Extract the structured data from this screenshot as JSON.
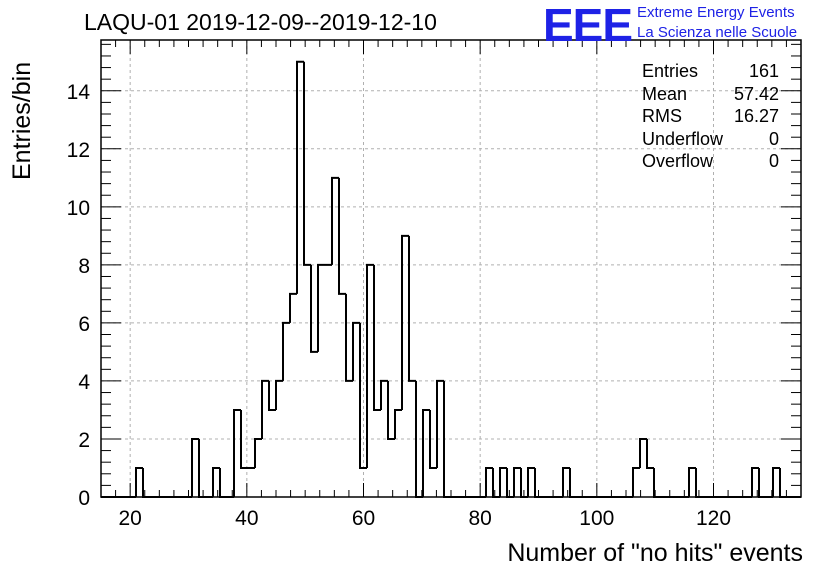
{
  "chart_data": {
    "type": "histogram",
    "title": "LAQU-01 2019-12-09--2019-12-10",
    "xlabel": "Number of \"no hits\" events",
    "ylabel": "Entries/bin",
    "xlim": [
      15,
      135
    ],
    "ylim": [
      0,
      15.75
    ],
    "bin_width": 1.2,
    "x_ticks": [
      20,
      40,
      60,
      80,
      100,
      120
    ],
    "y_ticks": [
      0,
      2,
      4,
      6,
      8,
      10,
      12,
      14
    ],
    "grid": true,
    "bins": [
      {
        "x0": 15.0,
        "v": 0
      },
      {
        "x0": 16.2,
        "v": 0
      },
      {
        "x0": 17.4,
        "v": 0
      },
      {
        "x0": 18.6,
        "v": 0
      },
      {
        "x0": 19.8,
        "v": 0
      },
      {
        "x0": 21.0,
        "v": 1
      },
      {
        "x0": 22.2,
        "v": 0
      },
      {
        "x0": 23.4,
        "v": 0
      },
      {
        "x0": 24.6,
        "v": 0
      },
      {
        "x0": 25.8,
        "v": 0
      },
      {
        "x0": 27.0,
        "v": 0
      },
      {
        "x0": 28.2,
        "v": 0
      },
      {
        "x0": 29.4,
        "v": 0
      },
      {
        "x0": 30.6,
        "v": 2
      },
      {
        "x0": 31.8,
        "v": 0
      },
      {
        "x0": 33.0,
        "v": 0
      },
      {
        "x0": 34.2,
        "v": 1
      },
      {
        "x0": 35.4,
        "v": 0
      },
      {
        "x0": 36.6,
        "v": 0
      },
      {
        "x0": 37.8,
        "v": 3
      },
      {
        "x0": 39.0,
        "v": 1
      },
      {
        "x0": 40.2,
        "v": 1
      },
      {
        "x0": 41.4,
        "v": 2
      },
      {
        "x0": 42.6,
        "v": 4
      },
      {
        "x0": 43.8,
        "v": 3
      },
      {
        "x0": 45.0,
        "v": 4
      },
      {
        "x0": 46.2,
        "v": 6
      },
      {
        "x0": 47.4,
        "v": 7
      },
      {
        "x0": 48.6,
        "v": 15
      },
      {
        "x0": 49.8,
        "v": 8
      },
      {
        "x0": 51.0,
        "v": 5
      },
      {
        "x0": 52.2,
        "v": 8
      },
      {
        "x0": 53.4,
        "v": 8
      },
      {
        "x0": 54.6,
        "v": 11
      },
      {
        "x0": 55.8,
        "v": 7
      },
      {
        "x0": 57.0,
        "v": 4
      },
      {
        "x0": 58.2,
        "v": 6
      },
      {
        "x0": 59.4,
        "v": 1
      },
      {
        "x0": 60.6,
        "v": 8
      },
      {
        "x0": 61.8,
        "v": 3
      },
      {
        "x0": 63.0,
        "v": 4
      },
      {
        "x0": 64.2,
        "v": 2
      },
      {
        "x0": 65.4,
        "v": 3
      },
      {
        "x0": 66.6,
        "v": 9
      },
      {
        "x0": 67.8,
        "v": 4
      },
      {
        "x0": 69.0,
        "v": 0
      },
      {
        "x0": 70.2,
        "v": 3
      },
      {
        "x0": 71.4,
        "v": 1
      },
      {
        "x0": 72.6,
        "v": 4
      },
      {
        "x0": 73.8,
        "v": 0
      },
      {
        "x0": 75.0,
        "v": 0
      },
      {
        "x0": 76.2,
        "v": 0
      },
      {
        "x0": 77.4,
        "v": 0
      },
      {
        "x0": 78.6,
        "v": 0
      },
      {
        "x0": 79.8,
        "v": 0
      },
      {
        "x0": 81.0,
        "v": 1
      },
      {
        "x0": 82.2,
        "v": 0
      },
      {
        "x0": 83.4,
        "v": 1
      },
      {
        "x0": 84.6,
        "v": 0
      },
      {
        "x0": 85.8,
        "v": 1
      },
      {
        "x0": 87.0,
        "v": 0
      },
      {
        "x0": 88.2,
        "v": 1
      },
      {
        "x0": 89.4,
        "v": 0
      },
      {
        "x0": 90.6,
        "v": 0
      },
      {
        "x0": 91.8,
        "v": 0
      },
      {
        "x0": 93.0,
        "v": 0
      },
      {
        "x0": 94.2,
        "v": 1
      },
      {
        "x0": 95.4,
        "v": 0
      },
      {
        "x0": 96.6,
        "v": 0
      },
      {
        "x0": 97.8,
        "v": 0
      },
      {
        "x0": 99.0,
        "v": 0
      },
      {
        "x0": 100.2,
        "v": 0
      },
      {
        "x0": 101.4,
        "v": 0
      },
      {
        "x0": 102.6,
        "v": 0
      },
      {
        "x0": 103.8,
        "v": 0
      },
      {
        "x0": 105.0,
        "v": 0
      },
      {
        "x0": 106.2,
        "v": 1
      },
      {
        "x0": 107.4,
        "v": 2
      },
      {
        "x0": 108.6,
        "v": 1
      },
      {
        "x0": 109.8,
        "v": 0
      },
      {
        "x0": 111.0,
        "v": 0
      },
      {
        "x0": 112.2,
        "v": 0
      },
      {
        "x0": 113.4,
        "v": 0
      },
      {
        "x0": 114.6,
        "v": 0
      },
      {
        "x0": 115.8,
        "v": 1
      },
      {
        "x0": 117.0,
        "v": 0
      },
      {
        "x0": 118.2,
        "v": 0
      },
      {
        "x0": 119.4,
        "v": 0
      },
      {
        "x0": 120.6,
        "v": 0
      },
      {
        "x0": 121.8,
        "v": 0
      },
      {
        "x0": 123.0,
        "v": 0
      },
      {
        "x0": 124.2,
        "v": 0
      },
      {
        "x0": 125.4,
        "v": 0
      },
      {
        "x0": 126.6,
        "v": 1
      },
      {
        "x0": 127.8,
        "v": 0
      },
      {
        "x0": 129.0,
        "v": 0
      },
      {
        "x0": 130.2,
        "v": 1
      },
      {
        "x0": 131.4,
        "v": 0
      },
      {
        "x0": 132.6,
        "v": 0
      },
      {
        "x0": 133.8,
        "v": 0
      }
    ],
    "stats": [
      {
        "label": "Entries",
        "value": "161"
      },
      {
        "label": "Mean",
        "value": "57.42"
      },
      {
        "label": "RMS",
        "value": "16.27"
      },
      {
        "label": "Underflow",
        "value": "0"
      },
      {
        "label": "Overflow",
        "value": "0"
      }
    ]
  },
  "logo": {
    "letters": "EEE",
    "line1": "Extreme Energy Events",
    "line2": "La Scienza nelle Scuole",
    "color": "#1e22e6"
  }
}
